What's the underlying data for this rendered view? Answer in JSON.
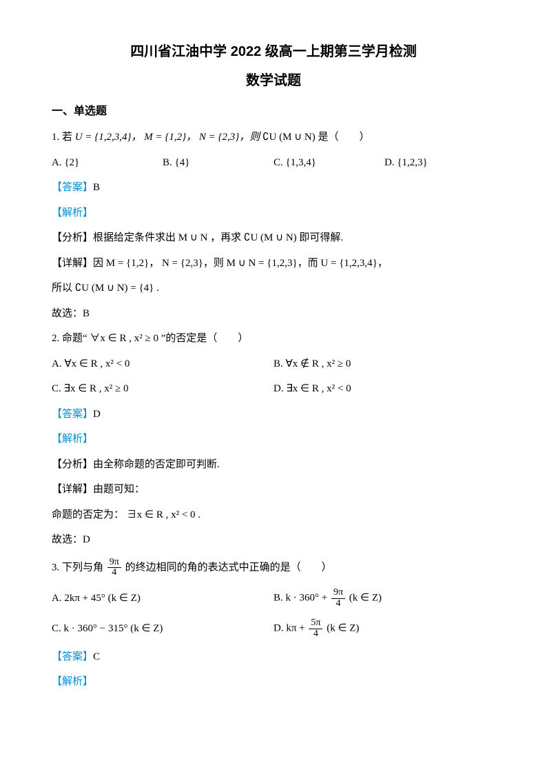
{
  "title": "四川省江油中学 2022 级高一上期第三学月检测",
  "subtitle": "数学试题",
  "section_heading": "一、单选题",
  "q1": {
    "stem_prefix": "1. 若",
    "sets": "U = {1,2,3,4}，  M = {1,2}，  N = {2,3}，则",
    "stem_suffix": "∁U (M ∪ N) 是（　　）",
    "opts": {
      "A": "A.  {2}",
      "B": "B.  {4}",
      "C": "C.  {1,3,4}",
      "D": "D.  {1,2,3}"
    },
    "answer_label": "【答案】",
    "answer_value": "B",
    "jiexi": "【解析】",
    "fenxi": "【分析】根据给定条件求出 M ∪ N ，再求 ∁U (M ∪ N) 即可得解.",
    "xiangjie": "【详解】因 M = {1,2}，  N = {2,3}，则 M ∪ N = {1,2,3}，而 U = {1,2,3,4}，",
    "suoyi": "所以 ∁U (M ∪ N) = {4} .",
    "guxuan": "故选：B"
  },
  "q2": {
    "stem": "2. 命题“ ∀x ∈ R , x² ≥ 0 ”的否定是（　　）",
    "opts": {
      "A": "A.  ∀x ∈ R , x² < 0",
      "B": "B.  ∀x ∉ R , x² ≥ 0",
      "C": "C.  ∃x ∈ R , x² ≥ 0",
      "D": "D.  ∃x ∈ R , x² < 0"
    },
    "answer_label": "【答案】",
    "answer_value": "D",
    "jiexi": "【解析】",
    "fenxi": "【分析】由全称命题的否定即可判断.",
    "xiangjie": "【详解】由题可知：",
    "negline": "命题的否定为： ∃x ∈ R , x² < 0 .",
    "guxuan": "故选：D"
  },
  "q3": {
    "stem_prefix": "3. 下列与角",
    "frac_num": "9π",
    "frac_den": "4",
    "stem_suffix": "的终边相同的角的表达式中正确的是（　　）",
    "opts": {
      "A": "A.  2kπ + 45° (k ∈ Z)",
      "B_pre": "B.  k · 360° + ",
      "B_num": "9π",
      "B_den": "4",
      "B_suf": " (k ∈ Z)",
      "C": "C.  k · 360° − 315° (k ∈ Z)",
      "D_pre": "D.  kπ + ",
      "D_num": "5π",
      "D_den": "4",
      "D_suf": " (k ∈ Z)"
    },
    "answer_label": "【答案】",
    "answer_value": "C",
    "jiexi": "【解析】"
  },
  "colors": {
    "text": "#000000",
    "answer_blue": "#008fd3",
    "background": "#ffffff"
  }
}
